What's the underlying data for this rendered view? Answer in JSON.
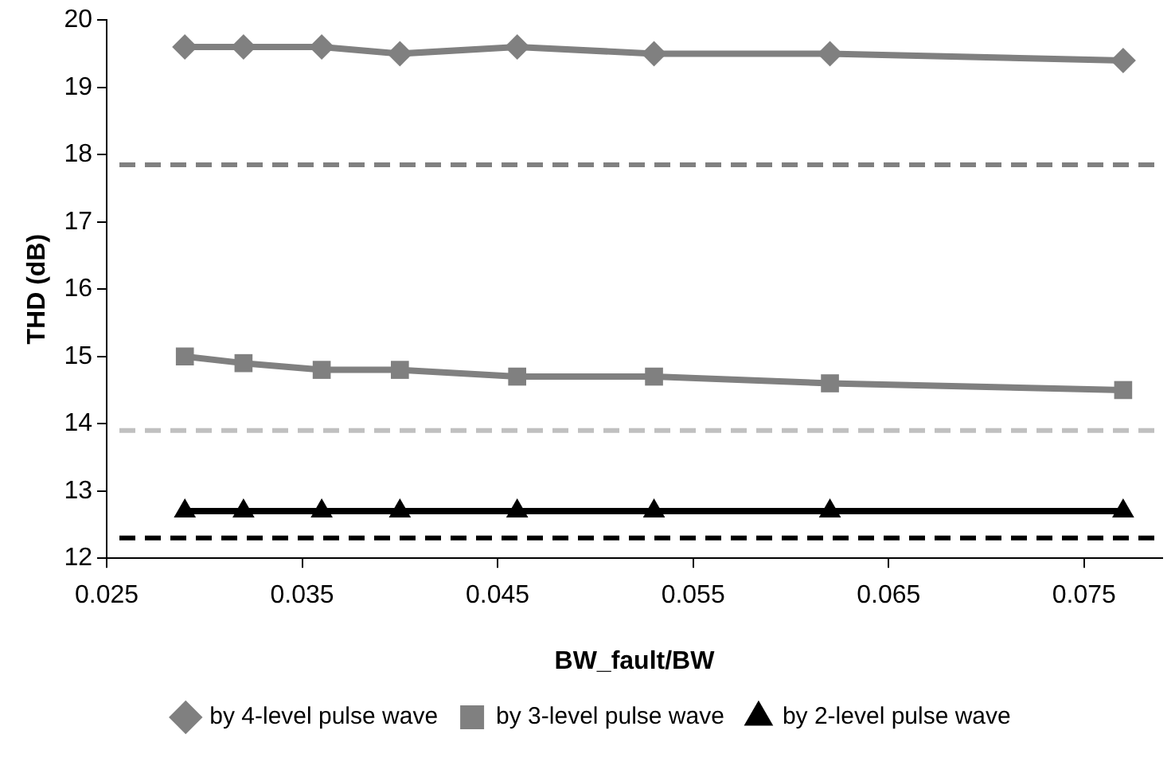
{
  "chart_data": {
    "type": "line",
    "xlabel": "BW_fault/BW",
    "ylabel": "THD (dB)",
    "x": [
      0.029,
      0.032,
      0.036,
      0.04,
      0.046,
      0.053,
      0.062,
      0.077
    ],
    "series": [
      {
        "name": "by 4-level pulse wave",
        "color": "#808080",
        "marker": "diamond",
        "values": [
          19.6,
          19.6,
          19.6,
          19.5,
          19.6,
          19.5,
          19.5,
          19.4
        ]
      },
      {
        "name": "by 3-level pulse wave",
        "color": "#808080",
        "marker": "square",
        "values": [
          15.0,
          14.9,
          14.8,
          14.8,
          14.7,
          14.7,
          14.6,
          14.5
        ]
      },
      {
        "name": "by 2-level pulse wave",
        "color": "#000000",
        "marker": "triangle",
        "values": [
          12.7,
          12.7,
          12.7,
          12.7,
          12.7,
          12.7,
          12.7,
          12.7
        ]
      }
    ],
    "ref_lines": [
      {
        "axis": "y",
        "value": 17.85,
        "color": "#808080",
        "line_style": "dashed"
      },
      {
        "axis": "y",
        "value": 13.9,
        "color": "#c0c0c0",
        "line_style": "dashed"
      },
      {
        "axis": "y",
        "value": 12.3,
        "color": "#000000",
        "line_style": "dashed"
      }
    ],
    "xlim": [
      0.025,
      0.079
    ],
    "xticks": [
      0.025,
      0.035,
      0.045,
      0.055,
      0.065,
      0.075
    ],
    "ylim": [
      12,
      20
    ],
    "yticks": [
      12,
      13,
      14,
      15,
      16,
      17,
      18,
      19,
      20
    ],
    "grid": false,
    "legend": "bottom"
  }
}
